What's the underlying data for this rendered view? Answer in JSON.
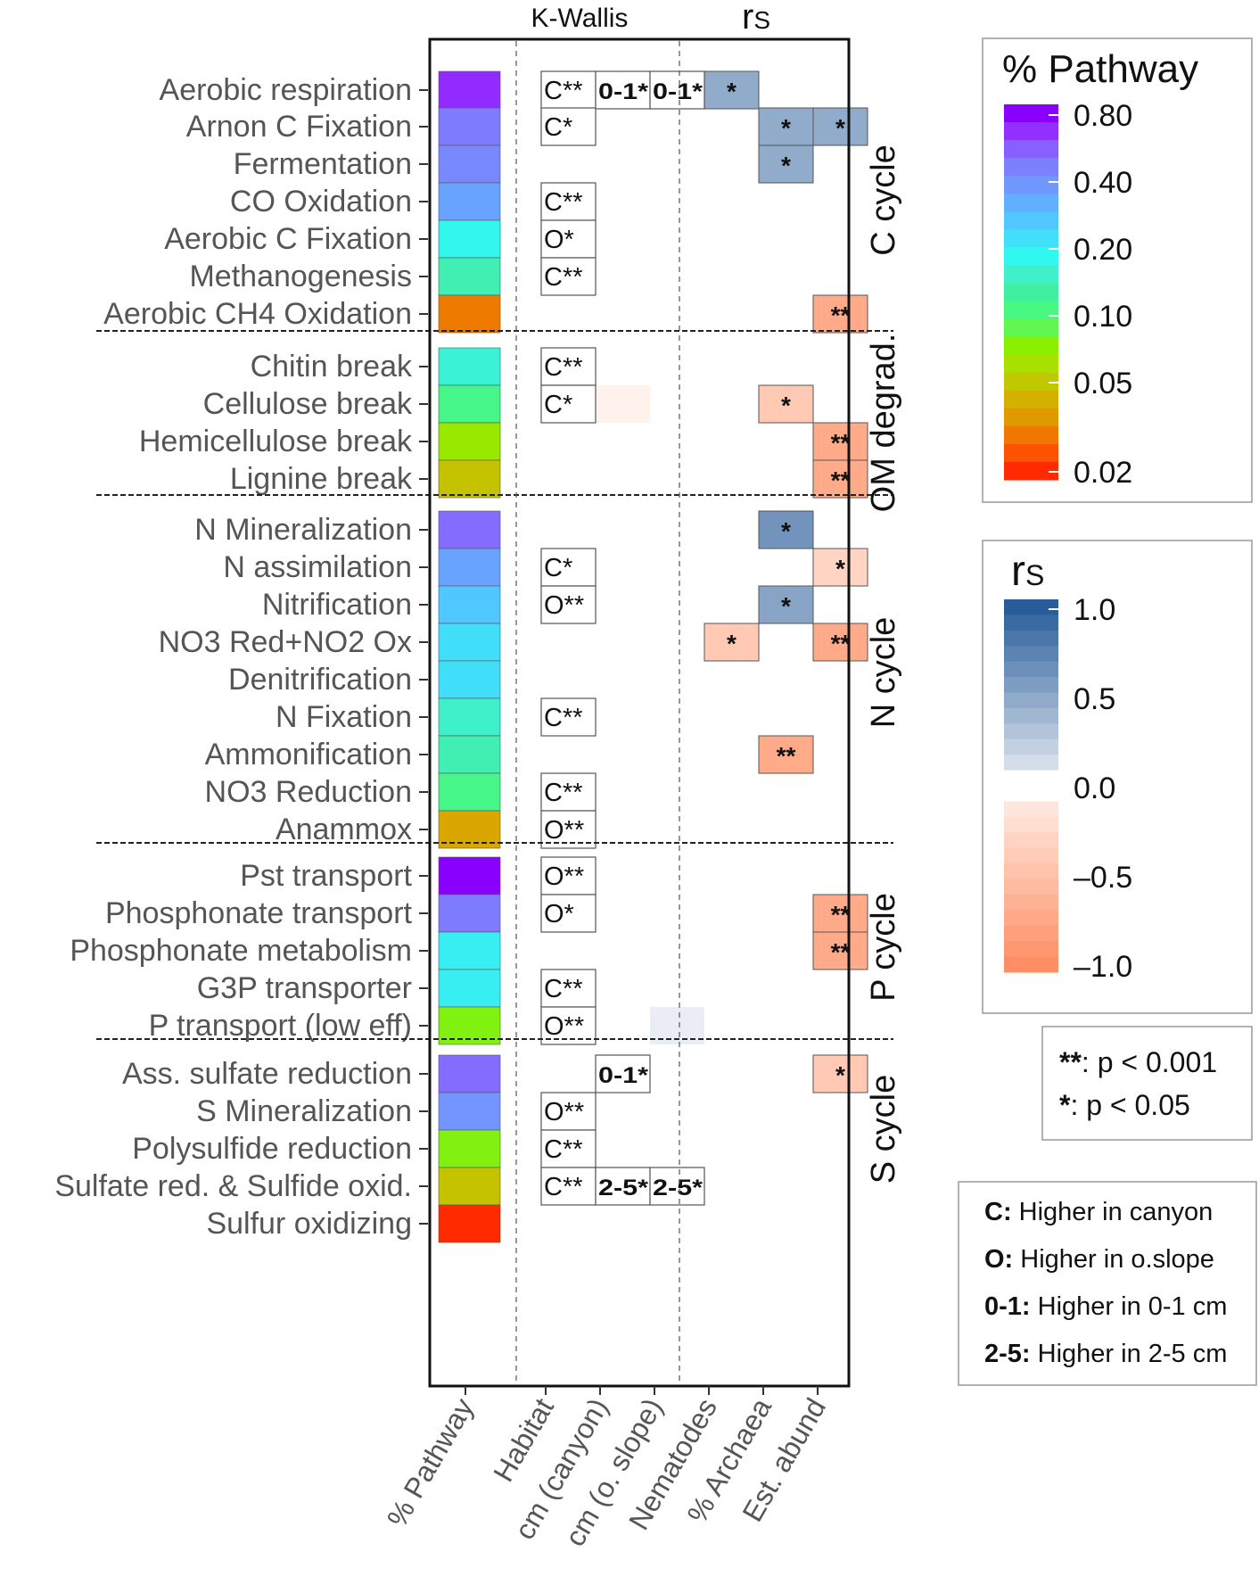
{
  "chart_data": {
    "type": "heatmap",
    "header": {
      "kwallis": "K-Wallis",
      "rs": "r",
      "rs_sub": "S"
    },
    "columns": [
      "% Pathway",
      "Habitat",
      "cm (canyon)",
      "cm (o. slope)",
      "Nematodes",
      "% Archaea",
      "Est. abund"
    ],
    "groups": [
      {
        "name": "C cycle",
        "rows": [
          "Aerobic respiration",
          "Arnon C Fixation",
          "Fermentation",
          "CO Oxidation",
          "Aerobic C Fixation",
          "Methanogenesis",
          "Aerobic CH4 Oxidation"
        ]
      },
      {
        "name": "OM degrad.",
        "rows": [
          "Chitin break",
          "Cellulose break",
          "Hemicellulose break",
          "Lignine break"
        ]
      },
      {
        "name": "N cycle",
        "rows": [
          "N Mineralization",
          "N assimilation",
          "Nitrification",
          "NO3 Red+NO2 Ox",
          "Denitrification",
          "N Fixation",
          "Ammonification",
          "NO3 Reduction",
          "Anammox"
        ]
      },
      {
        "name": "P cycle",
        "rows": [
          "Pst transport",
          "Phosphonate transport",
          "Phosphonate metabolism",
          "G3P transporter",
          "P transport (low eff)"
        ]
      },
      {
        "name": "S cycle",
        "rows": [
          "Ass. sulfate reduction",
          "S Mineralization",
          "Polysulfide reduction",
          "Sulfate red. & Sulfide oxid.",
          "Sulfur oxidizing"
        ]
      }
    ],
    "pathway_pct": [
      0.8,
      0.55,
      0.5,
      0.4,
      0.2,
      0.15,
      0.03,
      0.18,
      0.12,
      0.07,
      0.05,
      0.6,
      0.4,
      0.3,
      0.25,
      0.25,
      0.17,
      0.15,
      0.12,
      0.04,
      0.95,
      0.55,
      0.22,
      0.22,
      0.08,
      0.6,
      0.45,
      0.08,
      0.05,
      0.02
    ],
    "kwallis": [
      {
        "row": 0,
        "col": 1,
        "text": "C**"
      },
      {
        "row": 0,
        "col": 2,
        "text": "0-1*"
      },
      {
        "row": 0,
        "col": 3,
        "text": "0-1*"
      },
      {
        "row": 1,
        "col": 1,
        "text": "C*"
      },
      {
        "row": 3,
        "col": 1,
        "text": "C**"
      },
      {
        "row": 4,
        "col": 1,
        "text": "O*"
      },
      {
        "row": 5,
        "col": 1,
        "text": "C**"
      },
      {
        "row": 7,
        "col": 1,
        "text": "C**"
      },
      {
        "row": 8,
        "col": 1,
        "text": "C*"
      },
      {
        "row": 12,
        "col": 1,
        "text": "C*"
      },
      {
        "row": 13,
        "col": 1,
        "text": "O**"
      },
      {
        "row": 16,
        "col": 1,
        "text": "C**"
      },
      {
        "row": 18,
        "col": 1,
        "text": "C**"
      },
      {
        "row": 19,
        "col": 1,
        "text": "O**"
      },
      {
        "row": 20,
        "col": 1,
        "text": "O**"
      },
      {
        "row": 21,
        "col": 1,
        "text": "O*"
      },
      {
        "row": 23,
        "col": 1,
        "text": "C**"
      },
      {
        "row": 24,
        "col": 1,
        "text": "O**"
      },
      {
        "row": 25,
        "col": 2,
        "text": "0-1*"
      },
      {
        "row": 26,
        "col": 1,
        "text": "O**"
      },
      {
        "row": 27,
        "col": 1,
        "text": "C**"
      },
      {
        "row": 28,
        "col": 1,
        "text": "C**"
      },
      {
        "row": 28,
        "col": 2,
        "text": "2-5*"
      },
      {
        "row": 28,
        "col": 3,
        "text": "2-5*"
      }
    ],
    "correlations": [
      {
        "row": 0,
        "col": 4,
        "rs": 0.45,
        "sig": "*"
      },
      {
        "row": 1,
        "col": 5,
        "rs": 0.45,
        "sig": "*"
      },
      {
        "row": 1,
        "col": 6,
        "rs": 0.45,
        "sig": "*"
      },
      {
        "row": 2,
        "col": 5,
        "rs": 0.45,
        "sig": "*"
      },
      {
        "row": 6,
        "col": 6,
        "rs": -0.7,
        "sig": "**"
      },
      {
        "row": 8,
        "col": 2,
        "rs": -0.02,
        "sig": ""
      },
      {
        "row": 8,
        "col": 5,
        "rs": -0.4,
        "sig": "*"
      },
      {
        "row": 9,
        "col": 6,
        "rs": -0.7,
        "sig": "**"
      },
      {
        "row": 10,
        "col": 6,
        "rs": -0.7,
        "sig": "**"
      },
      {
        "row": 11,
        "col": 5,
        "rs": 0.6,
        "sig": "*"
      },
      {
        "row": 12,
        "col": 6,
        "rs": -0.3,
        "sig": "*"
      },
      {
        "row": 13,
        "col": 5,
        "rs": 0.5,
        "sig": "*"
      },
      {
        "row": 14,
        "col": 4,
        "rs": -0.4,
        "sig": "*"
      },
      {
        "row": 14,
        "col": 6,
        "rs": -0.7,
        "sig": "**"
      },
      {
        "row": 17,
        "col": 5,
        "rs": -0.7,
        "sig": "**"
      },
      {
        "row": 21,
        "col": 6,
        "rs": -0.7,
        "sig": "**"
      },
      {
        "row": 22,
        "col": 6,
        "rs": -0.7,
        "sig": "**"
      },
      {
        "row": 24,
        "col": 3,
        "rs": 0.02,
        "sig": ""
      },
      {
        "row": 25,
        "col": 6,
        "rs": -0.4,
        "sig": "*"
      }
    ],
    "pathway_legend": {
      "title": "% Pathway",
      "ticks": [
        "0.80",
        "0.40",
        "0.20",
        "0.10",
        "0.05",
        "0.02"
      ]
    },
    "rs_legend": {
      "title": "r",
      "title_sub": "S",
      "ticks": [
        "1.0",
        "0.5",
        "0.0",
        "–0.5",
        "–1.0"
      ],
      "range": [
        -1.0,
        1.0
      ]
    },
    "significance_legend": [
      {
        "sym": "**",
        "text": ": p < 0.001"
      },
      {
        "sym": "*",
        "text": ": p < 0.05"
      }
    ],
    "code_legend": [
      {
        "code": "C:",
        "text": " Higher in canyon"
      },
      {
        "code": "O:",
        "text": " Higher in o.slope"
      },
      {
        "code": "0-1:",
        "text": " Higher in 0-1 cm"
      },
      {
        "code": "2-5:",
        "text": " Higher in 2-5 cm"
      }
    ]
  },
  "colors": {
    "pathway_scale": [
      "#ff2a00",
      "#ff5200",
      "#f07800",
      "#e09a00",
      "#d4b000",
      "#c0c800",
      "#a8e000",
      "#88f000",
      "#60f850",
      "#48f880",
      "#40f0a0",
      "#40f0c8",
      "#30f8f0",
      "#40e0f8",
      "#50c8ff",
      "#60b0ff",
      "#7098ff",
      "#7c80ff",
      "#8860ff",
      "#9230ff",
      "#8a00ff"
    ],
    "rs_positive": "#1f5796",
    "rs_negative": "#ff8a5e"
  }
}
